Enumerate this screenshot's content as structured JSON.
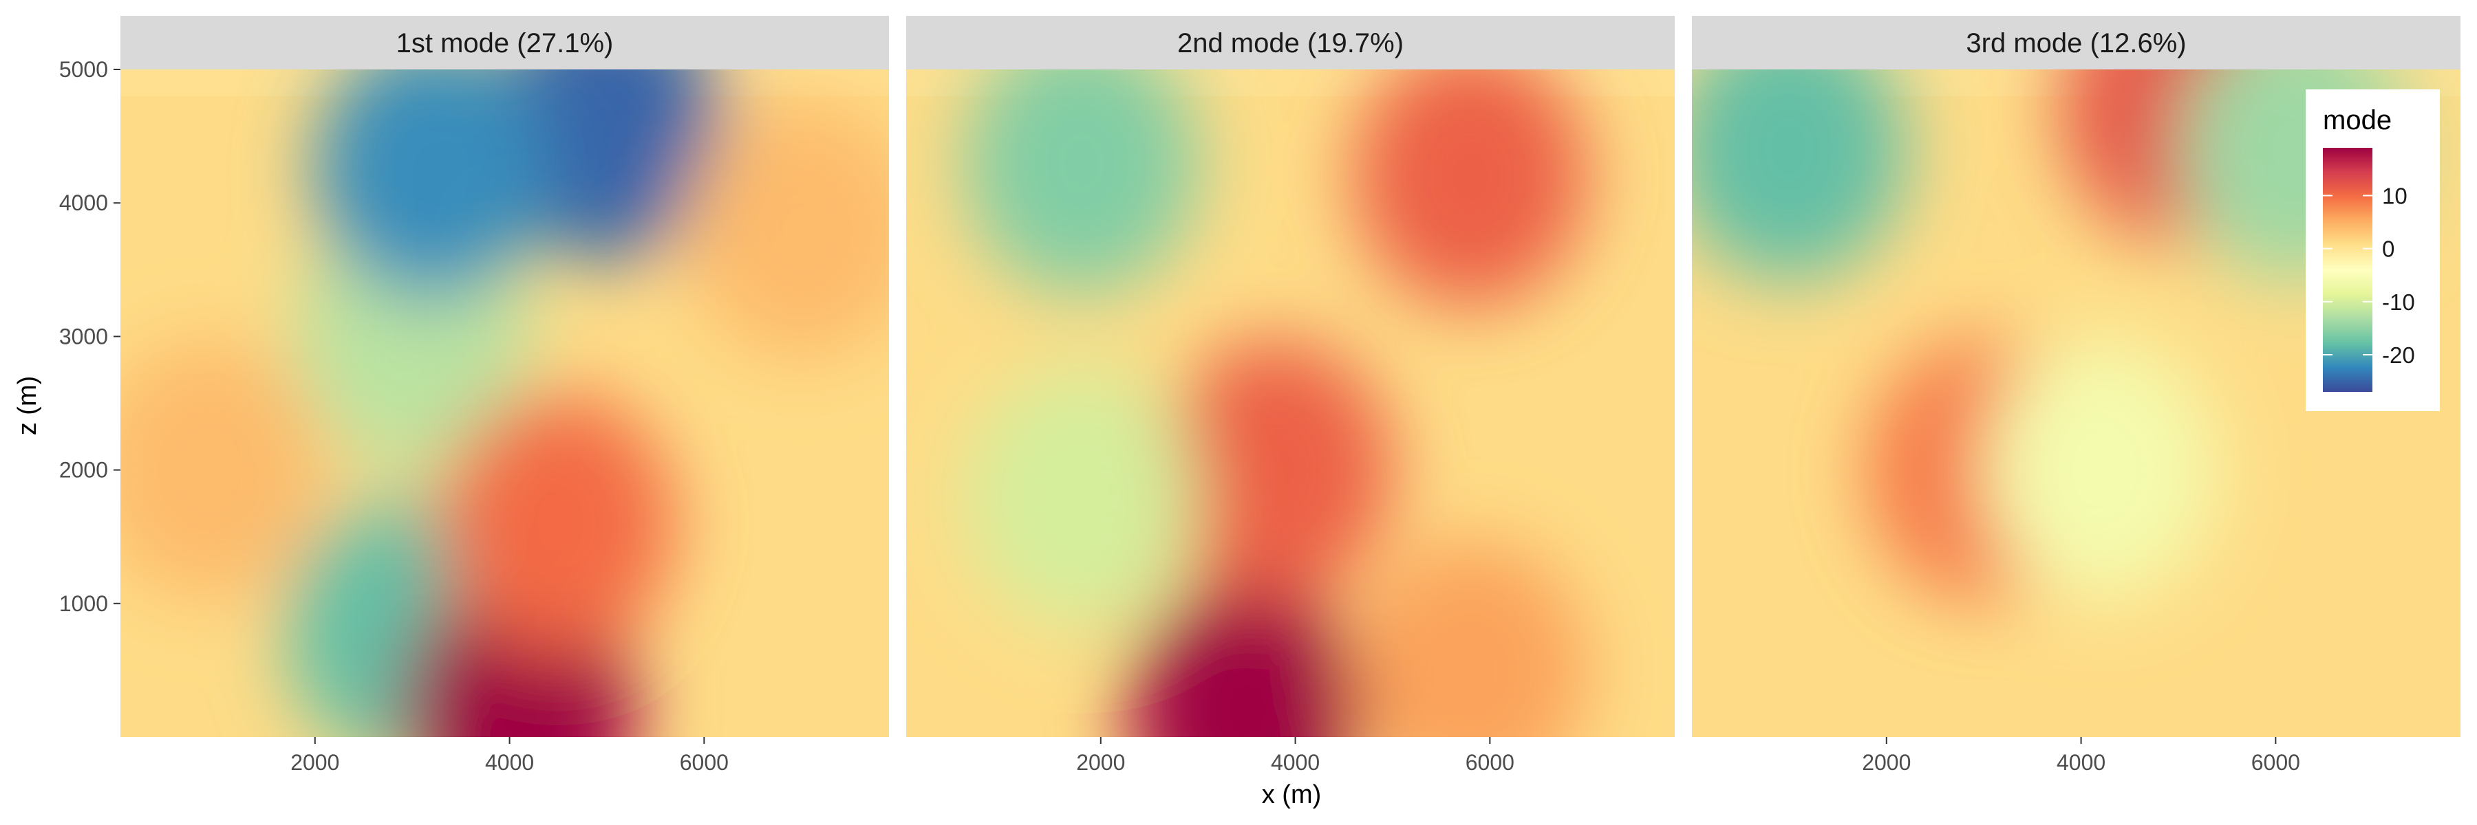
{
  "chart_data": {
    "type": "heatmap",
    "xlabel": "x (m)",
    "ylabel": "z (m)",
    "xlim": [
      0,
      7900
    ],
    "ylim": [
      0,
      5000
    ],
    "x_ticks": [
      2000,
      4000,
      6000
    ],
    "y_ticks": [
      1000,
      2000,
      3000,
      4000,
      5000
    ],
    "grid": false,
    "background_above_top": "#fee090",
    "legend": {
      "title": "mode",
      "placement": "right-inside",
      "ticks": [
        10,
        0,
        -10,
        -20
      ],
      "range": [
        -27,
        19
      ],
      "colors": [
        "#3b4a9a",
        "#3288bd",
        "#66c2a5",
        "#abdda4",
        "#e6f598",
        "#ffffbf",
        "#fee08b",
        "#fdae61",
        "#f46d43",
        "#d53e4f",
        "#9e0142"
      ]
    },
    "panels": [
      {
        "title": "1st mode (27.1%)",
        "approx_features": [
          {
            "x": 3000,
            "z": 3000,
            "value": -12,
            "note": "broad negative column"
          },
          {
            "x": 2900,
            "z": 800,
            "value": -18
          },
          {
            "x": 4100,
            "z": 200,
            "value": 19,
            "note": "strong positive plume base"
          },
          {
            "x": 4500,
            "z": 1600,
            "value": 10
          },
          {
            "x": 5000,
            "z": 4550,
            "value": -25,
            "note": "negative cap near top"
          },
          {
            "x": 3200,
            "z": 4250,
            "value": -22
          },
          {
            "x": 900,
            "z": 2000,
            "value": 4
          },
          {
            "x": 7000,
            "z": 3800,
            "value": 4
          }
        ]
      },
      {
        "title": "2nd mode (19.7%)",
        "approx_features": [
          {
            "x": 3500,
            "z": 200,
            "value": 19,
            "note": "strong positive plume base"
          },
          {
            "x": 3800,
            "z": 2000,
            "value": 11
          },
          {
            "x": 5800,
            "z": 4200,
            "value": 11
          },
          {
            "x": 1800,
            "z": 1800,
            "value": -10
          },
          {
            "x": 1800,
            "z": 4300,
            "value": -16
          },
          {
            "x": 5800,
            "z": 500,
            "value": 6
          }
        ]
      },
      {
        "title": "3rd mode (12.6%)",
        "approx_features": [
          {
            "x": 3000,
            "z": 2000,
            "value": 9
          },
          {
            "x": 5000,
            "z": 4700,
            "value": 12
          },
          {
            "x": 1000,
            "z": 4400,
            "value": -18
          },
          {
            "x": 6200,
            "z": 4400,
            "value": -14
          },
          {
            "x": 4200,
            "z": 2000,
            "value": -6
          }
        ]
      }
    ]
  }
}
